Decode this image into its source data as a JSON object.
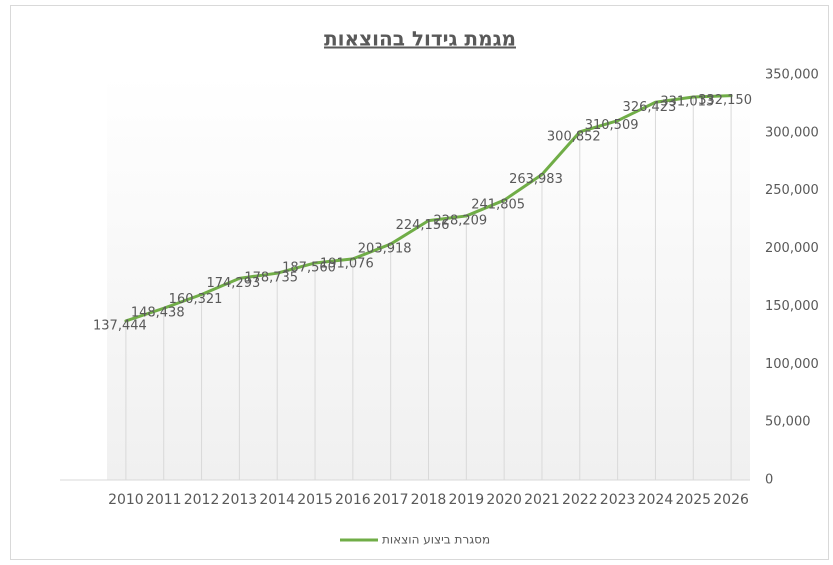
{
  "chart_data": {
    "type": "line",
    "title": "מגמת גידול בהוצאות",
    "categories": [
      "2010",
      "2011",
      "2012",
      "2013",
      "2014",
      "2015",
      "2016",
      "2017",
      "2018",
      "2019",
      "2020",
      "2021",
      "2022",
      "2023",
      "2024",
      "2025",
      "2026"
    ],
    "series": [
      {
        "name": "מסגרת ביצוע הוצאות",
        "color": "#70ad47",
        "values": [
          137444,
          148438,
          160321,
          174293,
          178735,
          187560,
          191076,
          203918,
          224156,
          228209,
          241805,
          263983,
          300852,
          310509,
          326423,
          331013,
          332150
        ],
        "value_labels": [
          "137,444",
          "148,438",
          "160,321",
          "174,293",
          "178,735",
          "187,560",
          "191,076",
          "203,918",
          "224,156",
          "228,209",
          "241,805",
          "263,983",
          "300,852",
          "310,509",
          "326,423",
          "331,013",
          "332,150"
        ]
      }
    ],
    "ylim": [
      0,
      350000
    ],
    "yticks": [
      0,
      {
        "value": 50000,
        "label": "50,000"
      },
      {
        "value": 100000,
        "label": "100,000"
      },
      {
        "value": 150000,
        "label": "150,000"
      },
      {
        "value": 200000,
        "label": "200,000"
      },
      {
        "value": 250000,
        "label": "250,000"
      },
      {
        "value": 300000,
        "label": "300,000"
      },
      {
        "value": 350000,
        "label": "350,000"
      }
    ],
    "drop_lines": true,
    "legend": "bottom"
  }
}
